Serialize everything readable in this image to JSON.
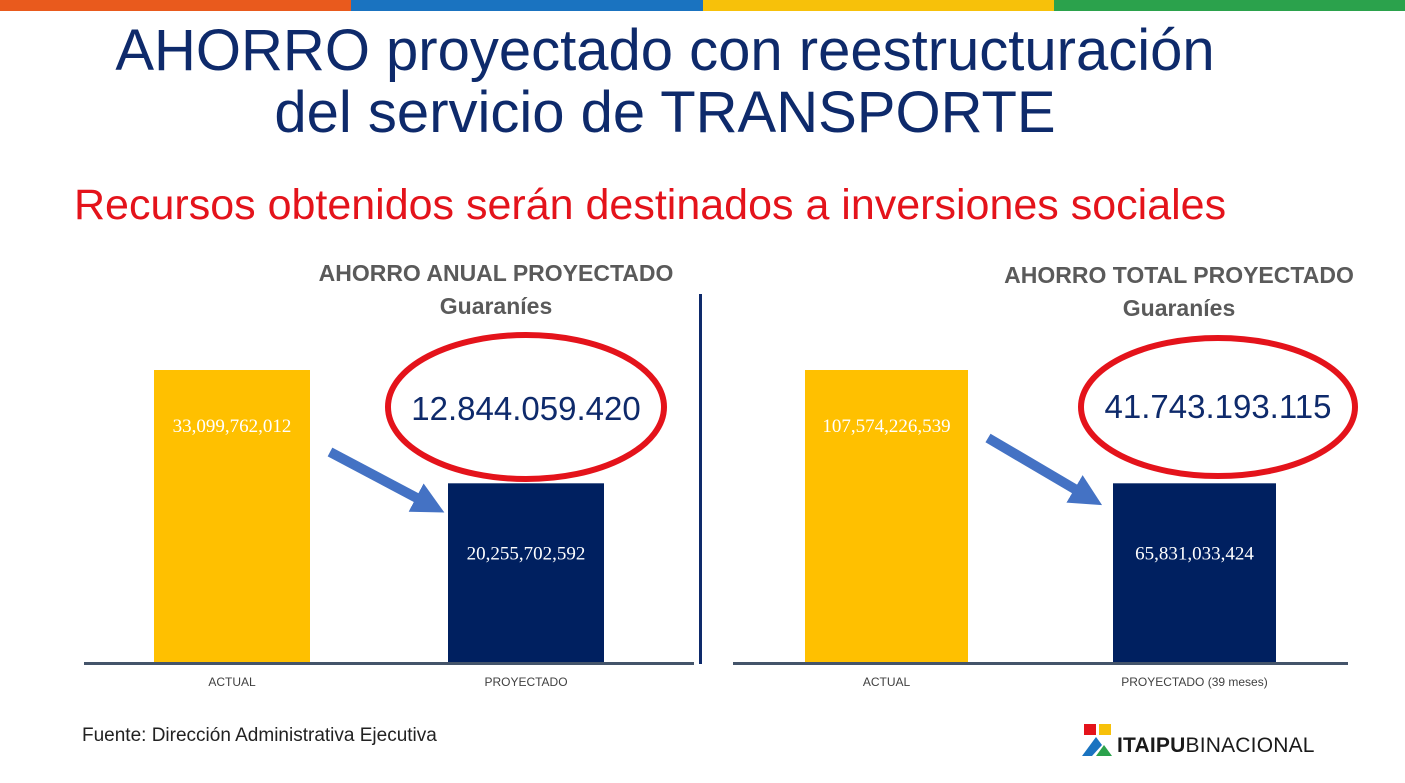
{
  "colors": {
    "topbar": [
      "#e95a1d",
      "#1a73c0",
      "#f7c10a",
      "#2ba24c"
    ],
    "actual_bar": "#ffc000",
    "projected_bar": "#002060",
    "arrow": "#4472c4",
    "circle": "#e4131b"
  },
  "header": {
    "title_line1": "AHORRO proyectado con reestructuración",
    "title_line2": "del servicio de TRANSPORTE",
    "subtitle": "Recursos obtenidos serán destinados a inversiones sociales"
  },
  "chart_data": [
    {
      "type": "bar",
      "title": "AHORRO ANUAL PROYECTADO",
      "subtitle": "Guaraníes",
      "categories": [
        "ACTUAL",
        "PROYECTADO"
      ],
      "values": [
        33099762012,
        20255702592
      ],
      "value_labels": [
        "33,099,762,012",
        "20,255,702,592"
      ],
      "ylim": [
        0,
        33099762012
      ],
      "highlight_value": "12.844.059.420"
    },
    {
      "type": "bar",
      "title": "AHORRO TOTAL PROYECTADO",
      "subtitle": "Guaraníes",
      "categories": [
        "ACTUAL",
        "PROYECTADO (39 meses)"
      ],
      "values": [
        107574226539,
        65831033424
      ],
      "value_labels": [
        "107,574,226,539",
        "65,831,033,424"
      ],
      "ylim": [
        0,
        107574226539
      ],
      "highlight_value": "41.743.193.115"
    }
  ],
  "footer": {
    "source": "Fuente: Dirección Administrativa Ejecutiva",
    "logo_bold": "ITAIPU",
    "logo_rest": "BINACIONAL"
  }
}
